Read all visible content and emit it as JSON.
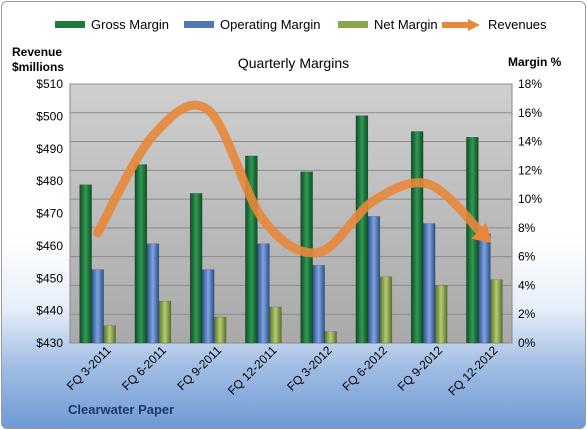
{
  "chart_data": {
    "type": "bar",
    "title": "Quarterly Margins",
    "categories": [
      "FQ 3-2011",
      "FQ 6-2011",
      "FQ 9-2011",
      "FQ 12-2011",
      "FQ 3-2012",
      "FQ 6-2012",
      "FQ 9-2012",
      "FQ 12-2012"
    ],
    "y_left": {
      "label_line1": "Revenue",
      "label_line2": "$millions",
      "range": [
        430,
        510
      ],
      "ticks": [
        "$430",
        "$440",
        "$450",
        "$460",
        "$470",
        "$480",
        "$490",
        "$500",
        "$510"
      ]
    },
    "y_right": {
      "label": "Margin %",
      "range": [
        0,
        18
      ],
      "ticks": [
        "0%",
        "2%",
        "4%",
        "6%",
        "8%",
        "10%",
        "12%",
        "14%",
        "16%",
        "18%"
      ]
    },
    "series": [
      {
        "name": "Gross Margin",
        "kind": "bar",
        "axis": "right",
        "color": "#1e7a3c",
        "values": [
          11.0,
          12.4,
          10.4,
          13.0,
          11.9,
          15.8,
          14.7,
          14.3
        ]
      },
      {
        "name": "Operating Margin",
        "kind": "bar",
        "axis": "right",
        "color": "#4f78b8",
        "values": [
          5.1,
          6.9,
          5.1,
          6.9,
          5.4,
          8.8,
          8.3,
          7.6
        ]
      },
      {
        "name": "Net Margin",
        "kind": "bar",
        "axis": "right",
        "color": "#8aa84a",
        "values": [
          1.2,
          2.9,
          1.8,
          2.5,
          0.8,
          4.6,
          4.0,
          4.4
        ]
      },
      {
        "name": "Revenues",
        "kind": "line",
        "axis": "left",
        "color": "#e8873a",
        "values": [
          464.0,
          494.0,
          502.0,
          468.0,
          458.0,
          474.0,
          479.0,
          463.0
        ]
      }
    ],
    "legend_position": "top",
    "grid": true
  },
  "source_label": "Clearwater Paper"
}
